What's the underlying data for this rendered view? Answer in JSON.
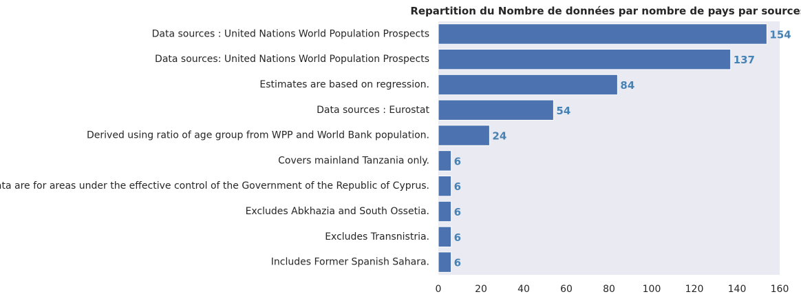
{
  "chart_data": {
    "type": "bar",
    "orientation": "horizontal",
    "title": "Repartition du Nombre de données par nombre de pays par sources",
    "xlabel": "",
    "ylabel": "",
    "categories": [
      "Data sources : United Nations World Population Prospects",
      "Data sources: United Nations World Population Prospects",
      "Estimates are based on regression.",
      "Data sources : Eurostat",
      "Derived using ratio of age group from WPP and World Bank population.",
      "Covers mainland Tanzania only.",
      "Data are for areas under the effective control of the Government of the Republic of Cyprus.",
      "Excludes Abkhazia and South Ossetia.",
      "Excludes Transnistria.",
      "Includes Former Spanish Sahara."
    ],
    "values": [
      154,
      137,
      84,
      54,
      24,
      6,
      6,
      6,
      6,
      6
    ],
    "data_labels": [
      "154",
      "137",
      "84",
      "54",
      "24",
      "6",
      "6",
      "6",
      "6",
      "6"
    ],
    "xlim": [
      0,
      160
    ],
    "xticks": [
      0,
      20,
      40,
      60,
      80,
      100,
      120,
      140,
      160
    ],
    "xtick_labels": [
      "0",
      "20",
      "40",
      "60",
      "80",
      "100",
      "120",
      "140",
      "160"
    ],
    "grid": false,
    "legend": "none",
    "colors": {
      "bar": "#4c72b0",
      "label": "#4682b4",
      "plot_background": "#eaeaf2"
    }
  }
}
